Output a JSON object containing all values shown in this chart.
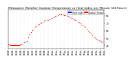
{
  "title": "Milwaukee Weather Outdoor Temperature vs Heat Index per Minute (24 Hours)",
  "legend_label_red": "Outdoor Temp",
  "legend_label_blue": "Heat Index",
  "legend_color_red": "#ff0000",
  "legend_color_blue": "#0000ff",
  "dot_color": "#ff0000",
  "dot_size": 0.8,
  "background_color": "#ffffff",
  "xlim": [
    0,
    1440
  ],
  "ylim": [
    36,
    88
  ],
  "yticks": [
    40,
    50,
    60,
    70,
    80
  ],
  "xtick_interval": 60,
  "vline_color": "#cccccc",
  "title_fontsize": 3.2,
  "tick_fontsize": 2.5,
  "data_x": [
    0,
    10,
    20,
    30,
    40,
    50,
    60,
    70,
    80,
    90,
    100,
    110,
    120,
    130,
    140,
    150,
    160,
    170,
    180,
    190,
    200,
    220,
    240,
    260,
    280,
    300,
    320,
    340,
    360,
    380,
    400,
    420,
    440,
    460,
    480,
    500,
    520,
    540,
    560,
    580,
    600,
    620,
    640,
    660,
    680,
    700,
    720,
    740,
    760,
    780,
    800,
    820,
    840,
    860,
    880,
    900,
    920,
    940,
    960,
    980,
    1000,
    1020,
    1040,
    1060,
    1080,
    1100,
    1120,
    1140,
    1160,
    1180,
    1200,
    1220,
    1240,
    1260,
    1280,
    1300,
    1320,
    1340,
    1360,
    1380,
    1400,
    1420,
    1440
  ],
  "data_y": [
    42,
    42,
    42,
    41,
    41,
    41,
    41,
    41,
    41,
    41,
    41,
    41,
    41,
    41,
    41,
    41,
    41,
    42,
    42,
    42,
    42,
    43,
    44,
    45,
    46,
    52,
    55,
    58,
    61,
    63,
    65,
    66,
    68,
    69,
    70,
    71,
    72,
    73,
    73,
    74,
    74,
    75,
    76,
    77,
    78,
    79,
    80,
    81,
    82,
    82,
    82,
    82,
    81,
    81,
    80,
    79,
    78,
    77,
    76,
    75,
    74,
    73,
    72,
    71,
    70,
    68,
    67,
    65,
    64,
    62,
    60,
    58,
    56,
    54,
    52,
    51,
    49,
    48,
    47,
    46,
    45,
    44,
    43
  ]
}
